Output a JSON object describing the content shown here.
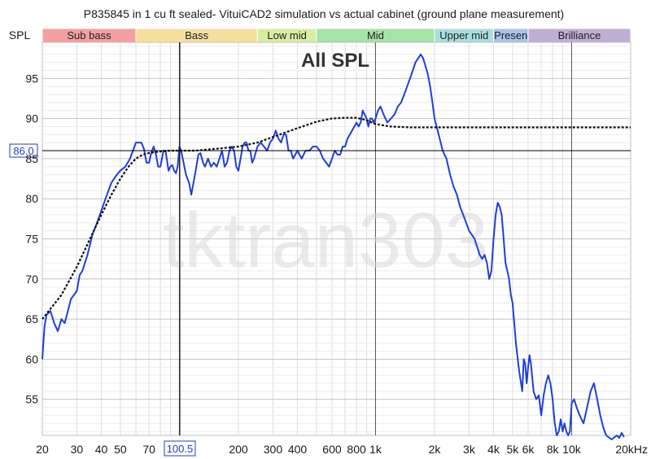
{
  "title": "P835845 in 1 cu ft sealed- VituiCAD2 simulation vs actual cabinet (ground plane measurement)",
  "y_axis_label": "SPL",
  "overlay_label": "All SPL",
  "watermark": "tktran303",
  "cursor": {
    "x_label": "100.5",
    "y_label": "86.0",
    "x": 100.5,
    "y": 86.0
  },
  "bands": [
    {
      "label": "Sub bass",
      "from": 20,
      "to": 60,
      "color": "#f4a0a0"
    },
    {
      "label": "Bass",
      "from": 60,
      "to": 250,
      "color": "#f7df9e"
    },
    {
      "label": "Low mid",
      "from": 250,
      "to": 500,
      "color": "#d9eda0"
    },
    {
      "label": "Mid",
      "from": 500,
      "to": 2000,
      "color": "#a7e2a9"
    },
    {
      "label": "Upper mid",
      "from": 2000,
      "to": 4000,
      "color": "#a8dede"
    },
    {
      "label": "Presen",
      "from": 4000,
      "to": 6000,
      "color": "#a9c3e8"
    },
    {
      "label": "Brilliance",
      "from": 6000,
      "to": 20000,
      "color": "#c0aed6"
    }
  ],
  "colors": {
    "measured": "#1f3fd8",
    "simulation": "#111111",
    "cursor": "#000000",
    "cursor_label": "#1f3fbf"
  },
  "chart_data": {
    "type": "line",
    "title": "P835845 in 1 cu ft sealed- VituiCAD2 simulation vs actual cabinet (ground plane measurement)",
    "ylabel": "SPL",
    "xscale": "log",
    "xlim": [
      20,
      20000
    ],
    "ylim": [
      50.5,
      99.5
    ],
    "x_ticks": [
      20,
      30,
      40,
      50,
      70,
      100.5,
      200,
      300,
      400,
      600,
      800,
      1000,
      2000,
      3000,
      4000,
      5000,
      6000,
      8000,
      10000,
      20000
    ],
    "x_tick_labels": [
      "20",
      "30",
      "40",
      "50",
      "70",
      "100.5",
      "200",
      "300",
      "400",
      "600",
      "800",
      "1k",
      "2k",
      "3k",
      "4k",
      "5k",
      "6k",
      "8k",
      "10k",
      "20kHz"
    ],
    "y_ticks": [
      55,
      60,
      65,
      70,
      75,
      80,
      85,
      90,
      95
    ],
    "y_tick_labels": [
      "55",
      "60",
      "65",
      "70",
      "75",
      "80",
      "85",
      "90",
      "95"
    ],
    "grid": true,
    "series": [
      {
        "style": "solid",
        "color": "#1f3fd8",
        "points": [
          [
            20,
            60
          ],
          [
            20.5,
            64
          ],
          [
            21,
            65.5
          ],
          [
            22,
            66
          ],
          [
            23,
            64.5
          ],
          [
            24,
            63.5
          ],
          [
            25,
            65
          ],
          [
            26,
            64.5
          ],
          [
            27,
            66
          ],
          [
            28,
            67.5
          ],
          [
            29,
            68
          ],
          [
            30,
            68.5
          ],
          [
            31,
            70.5
          ],
          [
            32,
            71
          ],
          [
            34,
            73
          ],
          [
            36,
            75.5
          ],
          [
            38,
            77
          ],
          [
            40,
            78.5
          ],
          [
            42,
            80
          ],
          [
            45,
            82
          ],
          [
            48,
            83
          ],
          [
            50,
            83.5
          ],
          [
            53,
            84
          ],
          [
            56,
            85
          ],
          [
            58,
            86
          ],
          [
            60,
            87
          ],
          [
            62,
            87
          ],
          [
            64,
            87
          ],
          [
            66,
            86.2
          ],
          [
            68,
            84.5
          ],
          [
            70,
            84.5
          ],
          [
            72,
            85.8
          ],
          [
            74,
            86.5
          ],
          [
            76,
            85.5
          ],
          [
            78,
            84
          ],
          [
            80,
            84
          ],
          [
            83,
            86
          ],
          [
            85,
            86
          ],
          [
            88,
            83.5
          ],
          [
            90,
            84
          ],
          [
            92,
            84.2
          ],
          [
            94,
            83.5
          ],
          [
            96,
            83.2
          ],
          [
            98,
            84
          ],
          [
            100,
            86.5
          ],
          [
            102,
            86
          ],
          [
            105,
            84.5
          ],
          [
            108,
            83
          ],
          [
            112,
            82
          ],
          [
            115,
            80.5
          ],
          [
            118,
            82
          ],
          [
            122,
            84
          ],
          [
            125,
            85.5
          ],
          [
            128,
            85.7
          ],
          [
            132,
            84.5
          ],
          [
            135,
            84
          ],
          [
            140,
            85
          ],
          [
            145,
            84
          ],
          [
            150,
            84.5
          ],
          [
            155,
            84
          ],
          [
            160,
            85
          ],
          [
            165,
            86
          ],
          [
            170,
            84
          ],
          [
            175,
            84.5
          ],
          [
            180,
            86
          ],
          [
            185,
            86.5
          ],
          [
            190,
            86
          ],
          [
            195,
            84
          ],
          [
            200,
            83.5
          ],
          [
            205,
            85
          ],
          [
            210,
            86.5
          ],
          [
            215,
            87
          ],
          [
            220,
            87
          ],
          [
            225,
            86
          ],
          [
            230,
            86
          ],
          [
            235,
            84.5
          ],
          [
            240,
            85
          ],
          [
            250,
            86.5
          ],
          [
            260,
            87
          ],
          [
            270,
            86.5
          ],
          [
            280,
            86
          ],
          [
            290,
            87
          ],
          [
            300,
            87.5
          ],
          [
            310,
            88.5
          ],
          [
            320,
            87.5
          ],
          [
            330,
            87
          ],
          [
            340,
            88
          ],
          [
            350,
            88
          ],
          [
            360,
            86
          ],
          [
            370,
            86
          ],
          [
            380,
            85
          ],
          [
            390,
            85.5
          ],
          [
            400,
            86
          ],
          [
            420,
            85
          ],
          [
            440,
            86
          ],
          [
            460,
            86
          ],
          [
            480,
            86.5
          ],
          [
            500,
            86.5
          ],
          [
            520,
            86
          ],
          [
            540,
            85
          ],
          [
            560,
            84.5
          ],
          [
            580,
            84
          ],
          [
            600,
            85
          ],
          [
            620,
            86
          ],
          [
            640,
            85.5
          ],
          [
            660,
            85.5
          ],
          [
            680,
            86.5
          ],
          [
            700,
            86.5
          ],
          [
            720,
            87.5
          ],
          [
            740,
            88
          ],
          [
            760,
            88.5
          ],
          [
            780,
            89
          ],
          [
            800,
            89.5
          ],
          [
            820,
            89
          ],
          [
            840,
            89.5
          ],
          [
            860,
            91
          ],
          [
            880,
            90.5
          ],
          [
            900,
            90
          ],
          [
            920,
            89
          ],
          [
            940,
            90
          ],
          [
            960,
            90
          ],
          [
            980,
            89.5
          ],
          [
            1000,
            90
          ],
          [
            1030,
            91
          ],
          [
            1060,
            91.5
          ],
          [
            1100,
            90.5
          ],
          [
            1150,
            89.5
          ],
          [
            1200,
            90
          ],
          [
            1250,
            90.5
          ],
          [
            1300,
            91.5
          ],
          [
            1350,
            92
          ],
          [
            1400,
            93
          ],
          [
            1450,
            94
          ],
          [
            1500,
            95
          ],
          [
            1550,
            96
          ],
          [
            1600,
            97
          ],
          [
            1650,
            97.5
          ],
          [
            1700,
            98
          ],
          [
            1750,
            97.5
          ],
          [
            1800,
            96.5
          ],
          [
            1850,
            95.5
          ],
          [
            1900,
            94
          ],
          [
            1950,
            92
          ],
          [
            2000,
            90
          ],
          [
            2100,
            88
          ],
          [
            2200,
            86
          ],
          [
            2300,
            85
          ],
          [
            2400,
            83
          ],
          [
            2500,
            81.5
          ],
          [
            2600,
            80.5
          ],
          [
            2700,
            79
          ],
          [
            2800,
            78
          ],
          [
            2900,
            77
          ],
          [
            3000,
            76
          ],
          [
            3100,
            75.5
          ],
          [
            3200,
            75
          ],
          [
            3300,
            74
          ],
          [
            3400,
            73
          ],
          [
            3500,
            72.5
          ],
          [
            3600,
            73
          ],
          [
            3700,
            72
          ],
          [
            3800,
            70
          ],
          [
            3900,
            71
          ],
          [
            4000,
            75
          ],
          [
            4100,
            78
          ],
          [
            4200,
            79.5
          ],
          [
            4300,
            79
          ],
          [
            4400,
            78
          ],
          [
            4500,
            75
          ],
          [
            4600,
            72
          ],
          [
            4700,
            71
          ],
          [
            4800,
            70
          ],
          [
            4900,
            68
          ],
          [
            5000,
            67
          ],
          [
            5200,
            62
          ],
          [
            5400,
            58.5
          ],
          [
            5600,
            56
          ],
          [
            5700,
            60
          ],
          [
            5800,
            59.5
          ],
          [
            5900,
            57
          ],
          [
            6000,
            59
          ],
          [
            6100,
            60.5
          ],
          [
            6200,
            59.5
          ],
          [
            6400,
            56
          ],
          [
            6600,
            55
          ],
          [
            6800,
            55.5
          ],
          [
            7000,
            53
          ],
          [
            7200,
            55.5
          ],
          [
            7400,
            57
          ],
          [
            7600,
            58
          ],
          [
            7800,
            57
          ],
          [
            8000,
            55
          ],
          [
            8200,
            52
          ],
          [
            8400,
            50.5
          ],
          [
            8600,
            51
          ],
          [
            8800,
            52.5
          ],
          [
            9000,
            51
          ],
          [
            9200,
            52
          ],
          [
            9400,
            51
          ],
          [
            9600,
            50.5
          ],
          [
            9800,
            51
          ],
          [
            10000,
            54.5
          ],
          [
            10300,
            55
          ],
          [
            10600,
            54
          ],
          [
            11000,
            53
          ],
          [
            11500,
            52
          ],
          [
            12000,
            54
          ],
          [
            12500,
            56
          ],
          [
            13000,
            57
          ],
          [
            13500,
            55
          ],
          [
            14000,
            53
          ],
          [
            14500,
            51.5
          ],
          [
            15000,
            50.5
          ],
          [
            16000,
            50
          ],
          [
            17000,
            50.5
          ],
          [
            17500,
            50.2
          ],
          [
            18000,
            50.8
          ],
          [
            18500,
            50.3
          ]
        ]
      },
      {
        "style": "dashed",
        "color": "#111111",
        "points": [
          [
            20,
            65
          ],
          [
            25,
            68
          ],
          [
            30,
            71.5
          ],
          [
            35,
            75
          ],
          [
            40,
            78
          ],
          [
            45,
            80.5
          ],
          [
            50,
            82.5
          ],
          [
            55,
            84
          ],
          [
            60,
            85
          ],
          [
            65,
            85.5
          ],
          [
            70,
            85.7
          ],
          [
            80,
            85.9
          ],
          [
            90,
            86
          ],
          [
            100,
            86
          ],
          [
            120,
            86
          ],
          [
            150,
            86.2
          ],
          [
            200,
            86.5
          ],
          [
            250,
            87
          ],
          [
            300,
            87.7
          ],
          [
            400,
            88.8
          ],
          [
            500,
            89.6
          ],
          [
            600,
            90
          ],
          [
            700,
            90.1
          ],
          [
            800,
            90.1
          ],
          [
            900,
            89.8
          ],
          [
            1000,
            89.3
          ],
          [
            1200,
            89
          ],
          [
            1500,
            88.9
          ],
          [
            2000,
            88.9
          ],
          [
            3000,
            88.9
          ],
          [
            5000,
            88.9
          ],
          [
            10000,
            88.9
          ],
          [
            20000,
            88.9
          ]
        ]
      }
    ]
  }
}
